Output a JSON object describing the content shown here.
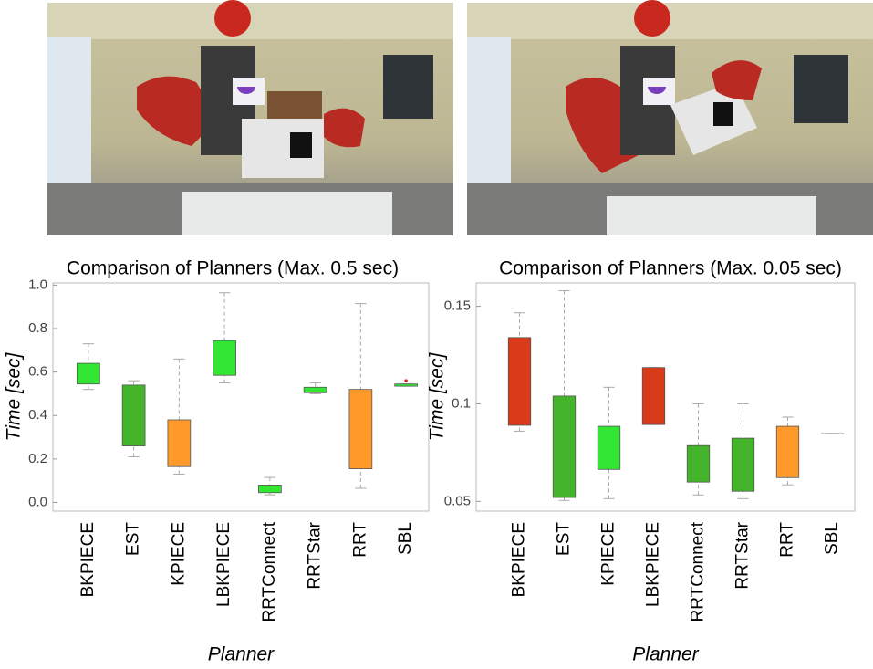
{
  "chart_data": [
    {
      "type": "box",
      "title": "Comparison of Planners (Max. 0.5 sec)",
      "y_label": "Time [sec]",
      "x_label": "Planner",
      "categories": [
        "BKPIECE",
        "EST",
        "KPIECE",
        "LBKPIECE",
        "RRTConnect",
        "RRTStar",
        "RRT",
        "SBL"
      ],
      "whishi": [
        0.73,
        0.56,
        0.66,
        0.965,
        0.115,
        0.55,
        0.915,
        0.545
      ],
      "q3": [
        0.64,
        0.54,
        0.38,
        0.745,
        0.08,
        0.53,
        0.52,
        0.545
      ],
      "q1": [
        0.545,
        0.26,
        0.165,
        0.585,
        0.045,
        0.505,
        0.155,
        0.535
      ],
      "whislo": [
        0.52,
        0.21,
        0.13,
        0.55,
        0.035,
        0.5,
        0.065,
        0.535
      ],
      "outliers": [
        [],
        [],
        [],
        [],
        [],
        [],
        [],
        [
          0.56
        ]
      ],
      "colors": [
        "#33e633",
        "#44b52a",
        "#ff9a2a",
        "#33e633",
        "#33e633",
        "#33e633",
        "#ff9a2a",
        "#33e633"
      ],
      "outlier_color": "#e02020",
      "ylim": [
        -0.04,
        1.01
      ],
      "yticks": [
        {
          "value": 0,
          "label": "0.0"
        },
        0.2,
        0.4,
        0.6,
        0.8,
        {
          "value": 1,
          "label": "1.0"
        }
      ]
    },
    {
      "type": "box",
      "title": "Comparison of Planners (Max. 0.05 sec)",
      "y_label": "Time [sec]",
      "x_label": "Planner",
      "categories": [
        "BKPIECE",
        "EST",
        "KPIECE",
        "LBKPIECE",
        "RRTConnect",
        "RRTStar",
        "RRT",
        "SBL"
      ],
      "whishi": [
        0.1467,
        0.158,
        0.1085,
        0.1186,
        0.1,
        0.1,
        0.0932,
        0.0848
      ],
      "q3": [
        0.134,
        0.104,
        0.0885,
        0.1186,
        0.0786,
        0.0824,
        0.0885,
        0.0848
      ],
      "q1": [
        0.089,
        0.052,
        0.0664,
        0.0894,
        0.0599,
        0.0552,
        0.0622,
        0.0848
      ],
      "whislo": [
        0.086,
        0.0505,
        0.0514,
        0.0894,
        0.0533,
        0.0514,
        0.0585,
        0.0848
      ],
      "outliers": [
        [],
        [],
        [],
        [],
        [],
        [],
        [],
        []
      ],
      "colors": [
        "#d93a1a",
        "#44b52a",
        "#33e633",
        "#d93a1a",
        "#44b52a",
        "#44b52a",
        "#ff9a2a",
        "#888888"
      ],
      "outlier_color": "#e02020",
      "ylim": [
        0.045,
        0.162
      ],
      "yticks": [
        0.05,
        0.1,
        0.15
      ]
    }
  ]
}
